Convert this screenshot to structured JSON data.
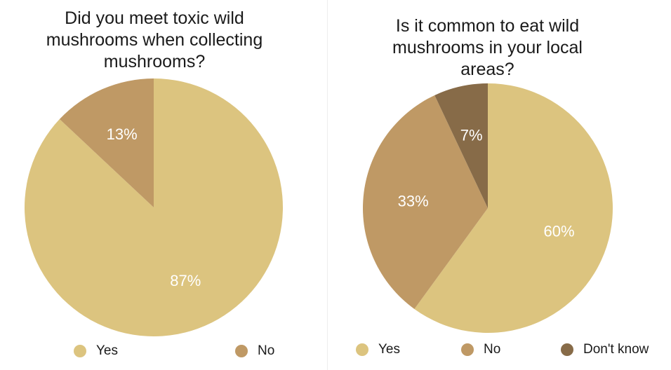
{
  "chart_data": [
    {
      "type": "pie",
      "title": "Did you meet toxic wild\nmushrooms when collecting\nmushrooms?",
      "categories": [
        "Yes",
        "No"
      ],
      "values": [
        87,
        13
      ],
      "labels": [
        "87%",
        "13%"
      ],
      "colors": [
        "#dcc47f",
        "#bf9965"
      ],
      "legend_placement": "bottom"
    },
    {
      "type": "pie",
      "title": "Is it common to eat wild\nmushrooms in your local\nareas?",
      "categories": [
        "Yes",
        "No",
        "Don't know"
      ],
      "values": [
        60,
        33,
        7
      ],
      "labels": [
        "60%",
        "33%",
        "7%"
      ],
      "colors": [
        "#dcc47f",
        "#bf9965",
        "#876b48"
      ],
      "legend_placement": "bottom"
    }
  ]
}
